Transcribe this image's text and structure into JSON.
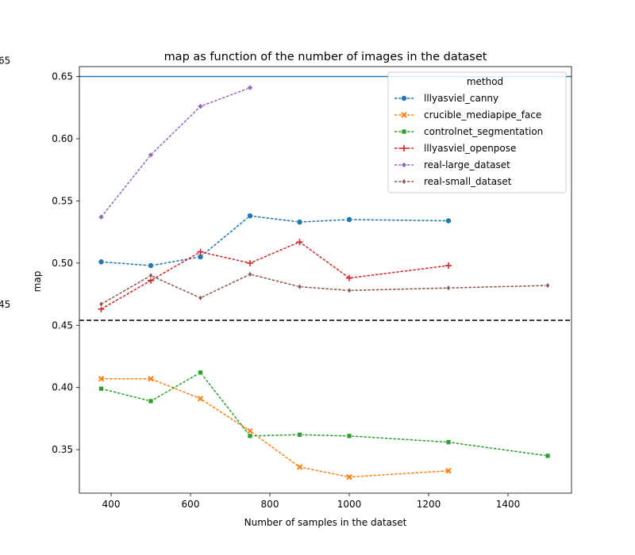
{
  "chart_data": {
    "type": "line",
    "title": "map as function of the number of images in the dataset",
    "xlabel": "Number of samples in the dataset",
    "ylabel": "map",
    "xlim": [
      320,
      1560
    ],
    "ylim": [
      0.315,
      0.658
    ],
    "xticks": [
      400,
      600,
      800,
      1000,
      1200,
      1400
    ],
    "yticks": [
      0.35,
      0.4,
      0.45,
      0.5,
      0.55,
      0.6,
      0.65
    ],
    "ytick_labels": [
      "0.35",
      "0.40",
      "0.45",
      "0.50",
      "0.55",
      "0.60",
      "0.65"
    ],
    "grid": false,
    "legend": {
      "title": "method",
      "placement": "top-right"
    },
    "reference_lines": [
      {
        "y": 0.65,
        "label": "65",
        "color": "#1f77b4",
        "style": "solid"
      },
      {
        "y": 0.454,
        "label": "45",
        "color": "#000000",
        "style": "dashed"
      }
    ],
    "series": [
      {
        "name": "lllyasviel_canny",
        "color": "#1f77b4",
        "marker": "circle",
        "x": [
          375,
          500,
          625,
          750,
          875,
          1000,
          1250
        ],
        "y": [
          0.501,
          0.498,
          0.505,
          0.538,
          0.533,
          0.535,
          0.534
        ]
      },
      {
        "name": "crucible_mediapipe_face",
        "color": "#ff7f0e",
        "marker": "x",
        "x": [
          375,
          500,
          625,
          750,
          875,
          1000,
          1250
        ],
        "y": [
          0.407,
          0.407,
          0.391,
          0.365,
          0.336,
          0.328,
          0.333
        ]
      },
      {
        "name": "controlnet_segmentation",
        "color": "#2ca02c",
        "marker": "square",
        "x": [
          375,
          500,
          625,
          750,
          875,
          1000,
          1250,
          1500
        ],
        "y": [
          0.399,
          0.389,
          0.412,
          0.361,
          0.362,
          0.361,
          0.356,
          0.345
        ]
      },
      {
        "name": "lllyasviel_openpose",
        "color": "#d62728",
        "marker": "plus",
        "x": [
          375,
          500,
          625,
          750,
          875,
          1000,
          1250
        ],
        "y": [
          0.463,
          0.486,
          0.509,
          0.5,
          0.517,
          0.488,
          0.498
        ]
      },
      {
        "name": "real-large_dataset",
        "color": "#9467bd",
        "marker": "diamond",
        "x": [
          375,
          500,
          625,
          750
        ],
        "y": [
          0.537,
          0.587,
          0.626,
          0.641
        ]
      },
      {
        "name": "real-small_dataset",
        "color": "#8c564b",
        "marker": "thin_diamond",
        "x": [
          375,
          500,
          625,
          750,
          875,
          1000,
          1250,
          1500
        ],
        "y": [
          0.467,
          0.49,
          0.472,
          0.491,
          0.481,
          0.478,
          0.48,
          0.482
        ]
      }
    ]
  }
}
